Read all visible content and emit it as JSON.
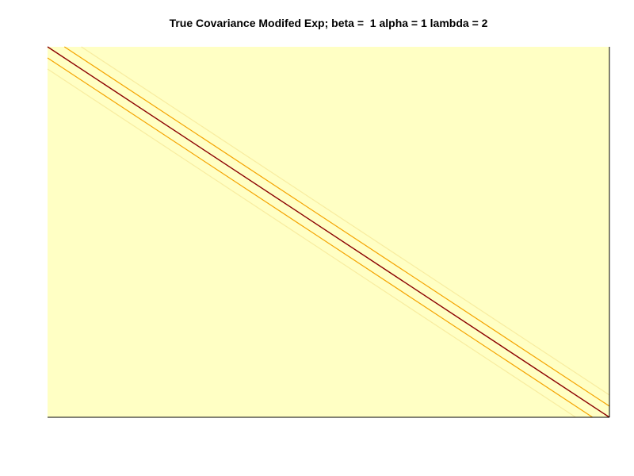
{
  "chart_data": {
    "type": "heatmap",
    "title": "True Covariance Modifed Exp; beta =  1 alpha = 1 lambda = 2",
    "xlabel": "",
    "ylabel": "",
    "matrix_size": 101,
    "parameters": {
      "beta": 1,
      "alpha": 1,
      "lambda": 2
    },
    "bands": [
      {
        "offset": 0,
        "value": 1.0,
        "color": "#8b0000"
      },
      {
        "offset": 3,
        "value": 0.6,
        "color": "#f5a300"
      },
      {
        "offset": -3,
        "value": 0.6,
        "color": "#f5a300"
      },
      {
        "offset": 6,
        "value": 0.15,
        "color": "#f8eca0"
      },
      {
        "offset": -6,
        "value": 0.15,
        "color": "#f8eca0"
      }
    ],
    "background_value": 0,
    "colors": {
      "background": "#ffffc4",
      "axes": "#000000"
    },
    "colorbar": false,
    "axis_ticks": false
  }
}
